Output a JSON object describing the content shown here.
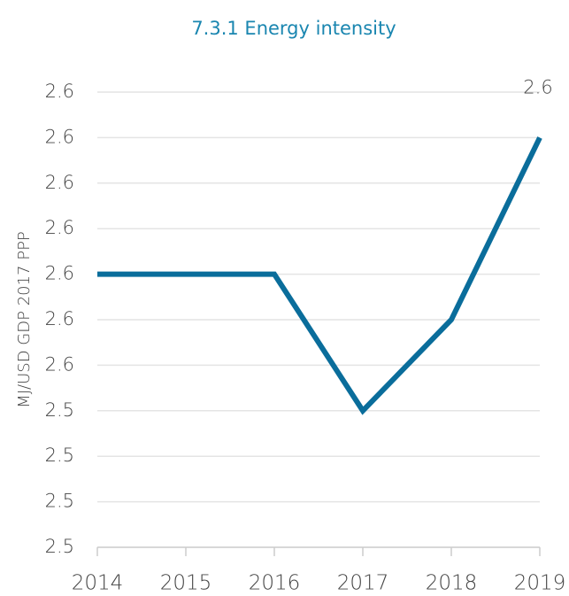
{
  "chart_data": {
    "type": "line",
    "title": "7.3.1 Energy intensity",
    "y_label": "MJ/USD GDP 2017 PPP",
    "categories": [
      "2014",
      "2015",
      "2016",
      "2017",
      "2018",
      "2019"
    ],
    "series": [
      {
        "name": "Energy intensity",
        "color": "#0a6d9b",
        "values": [
          2.57,
          2.57,
          2.57,
          2.54,
          2.56,
          2.6
        ],
        "value_labels": [
          null,
          null,
          null,
          null,
          null,
          "2.6"
        ]
      }
    ],
    "ylim": [
      2.51,
      2.61
    ],
    "yticks": [
      {
        "value": 2.51,
        "label": "2.5"
      },
      {
        "value": 2.52,
        "label": "2.5"
      },
      {
        "value": 2.53,
        "label": "2.5"
      },
      {
        "value": 2.54,
        "label": "2.5"
      },
      {
        "value": 2.55,
        "label": "2.6"
      },
      {
        "value": 2.56,
        "label": "2.6"
      },
      {
        "value": 2.57,
        "label": "2.6"
      },
      {
        "value": 2.58,
        "label": "2.6"
      },
      {
        "value": 2.59,
        "label": "2.6"
      },
      {
        "value": 2.6,
        "label": "2.6"
      },
      {
        "value": 2.61,
        "label": "2.6"
      }
    ],
    "grid": true
  }
}
